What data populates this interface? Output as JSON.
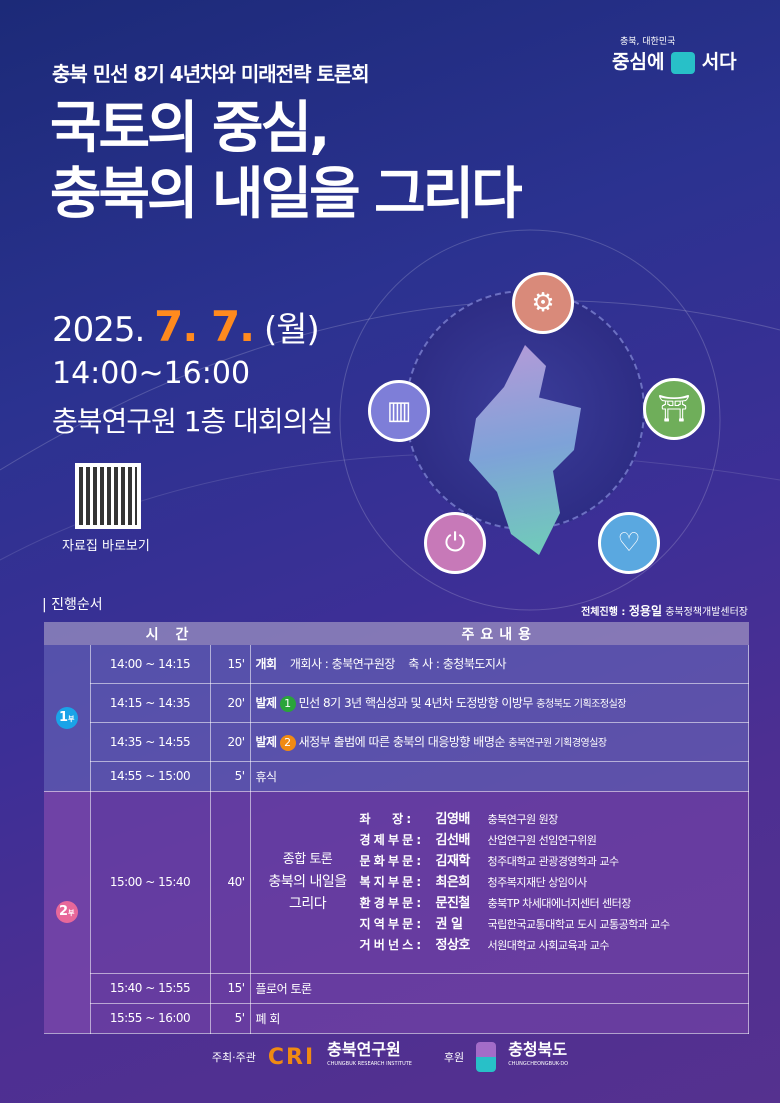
{
  "header": {
    "subtitle": "충북 민선 8기 4년차와 미래전략 토론회",
    "title_line1": "국토의 중심,",
    "title_line2": "충북의 내일을 그리다"
  },
  "slogan": {
    "small": "충북, 대한민국",
    "left": "중심에",
    "right": "서다"
  },
  "event": {
    "date_prefix": "2025.",
    "date_highlight": "7. 7.",
    "date_day": "(월)",
    "time": "14:00~16:00",
    "place": "충북연구원 1층 대회의실"
  },
  "qr": {
    "label": "자료집 바로보기"
  },
  "program": {
    "section_title": "진행순서",
    "host_label": "전체진행 : ",
    "host_name": "정용일",
    "host_title": "충북정책개발센터장",
    "headers": {
      "time": "시 간",
      "content": "주요내용"
    },
    "part1": {
      "label": "1",
      "suffix": "부",
      "color": "#1aa3e8"
    },
    "part2": {
      "label": "2",
      "suffix": "부",
      "color": "#e8689a"
    },
    "rows": [
      {
        "time": "14:00 ~ 14:15",
        "min": "15'",
        "title": "개회",
        "a": "개회사 : 충북연구원장",
        "b": "축 사 : 충청북도지사"
      },
      {
        "time": "14:15 ~ 14:35",
        "min": "20'",
        "title": "발제",
        "num": "1",
        "numColor": "#2aa43a",
        "topic": "민선 8기 3년 핵심성과 및 4년차 도정방향",
        "speaker": "이방무",
        "org": "충청북도 기획조정실장"
      },
      {
        "time": "14:35 ~ 14:55",
        "min": "20'",
        "title": "발제",
        "num": "2",
        "numColor": "#f08a12",
        "topic": "새정부 출범에 따른 충북의 대응방향",
        "speaker": "배명순",
        "org": "충북연구원 기획경영실장"
      },
      {
        "time": "14:55 ~ 15:00",
        "min": "5'",
        "title": "휴식"
      },
      {
        "time": "15:00 ~ 15:40",
        "min": "40'",
        "title1": "종합 토론",
        "title2": "충북의 내일을",
        "title3": "그리다"
      },
      {
        "time": "15:40 ~ 15:55",
        "min": "15'",
        "title": "플로어 토론"
      },
      {
        "time": "15:55 ~ 16:00",
        "min": "5'",
        "title": "폐 회"
      }
    ],
    "panel": [
      {
        "role": "좌      장",
        "name": "김영배",
        "org": "충북연구원 원장"
      },
      {
        "role": "경 제 부 문",
        "name": "김선배",
        "org": "산업연구원 선임연구위원"
      },
      {
        "role": "문 화 부 문",
        "name": "김재학",
        "org": "청주대학교 관광경영학과 교수"
      },
      {
        "role": "복 지 부 문",
        "name": "최은희",
        "org": "청주복지재단 상임이사"
      },
      {
        "role": "환 경 부 문",
        "name": "문진철",
        "org": "충북TP 차세대에너지센터 센터장"
      },
      {
        "role": "지 역 부 문",
        "name": "권  일",
        "org": "국립한국교통대학교 도시 교통공학과 교수"
      },
      {
        "role": "거 버 넌 스",
        "name": "정상호",
        "org": "서원대학교 사회교육과 교수"
      }
    ]
  },
  "footer": {
    "host_label": "주최·주관",
    "cri": "CRI",
    "cri_name": "충북연구원",
    "cri_en": "CHUNGBUK RESEARCH INSTITUTE",
    "sponsor_label": "후원",
    "sponsor": "충청북도",
    "sponsor_en": "CHUNGCHEONGBUK-DO",
    "accent": "#f08a12"
  }
}
